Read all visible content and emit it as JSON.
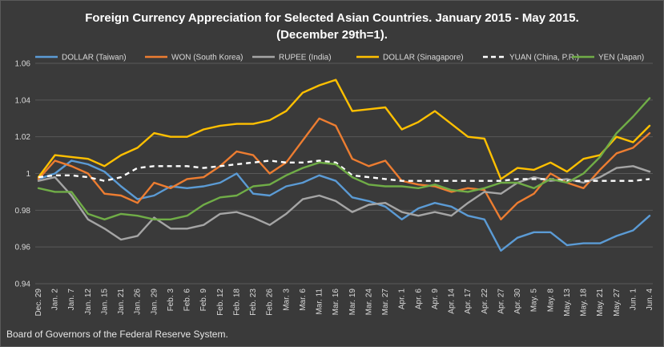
{
  "chart_data": {
    "type": "line",
    "title_line1": "Foreign Currency Appreciation for Selected Asian Countries. January 2015 - May 2015.",
    "title_line2": "(December 29th=1).",
    "source": "Board of Governors of the Federal Reserve System.",
    "ylim": [
      0.94,
      1.06
    ],
    "y_ticks": [
      "0.94",
      "0.96",
      "0.98",
      "1",
      "1.02",
      "1.04",
      "1.06"
    ],
    "grid": true,
    "legend_position": "top",
    "x_tick_labels": [
      "Dec. 29",
      "Jan. 2",
      "Jan. 7",
      "Jan. 12",
      "Jan. 15",
      "Jan. 21",
      "Jan. 26",
      "Jan. 29",
      "Feb. 3",
      "Feb. 6",
      "Feb. 9",
      "Feb. 12",
      "Feb. 18",
      "Feb. 23",
      "Feb. 26",
      "Mar. 3",
      "Mar. 6",
      "Mar. 11",
      "Mar. 16",
      "Mar. 19",
      "Mar. 24",
      "Mar. 27",
      "Apr. 1",
      "Apr. 6",
      "Apr. 9",
      "Apr. 14",
      "Apr. 17",
      "Apr. 22",
      "Apr. 27",
      "Apr. 30",
      "May. 5",
      "May. 8",
      "May. 13",
      "May. 18",
      "May. 21",
      "May. 27",
      "Jun. 1",
      "Jun. 4"
    ],
    "series": [
      {
        "name": "DOLLAR (Taiwan)",
        "color": "#5b9bd5",
        "style": "solid",
        "values": [
          0.997,
          1.0,
          1.007,
          1.005,
          1.001,
          0.993,
          0.986,
          0.988,
          0.993,
          0.992,
          0.993,
          0.995,
          1.0,
          0.989,
          0.988,
          0.993,
          0.995,
          0.999,
          0.996,
          0.987,
          0.985,
          0.982,
          0.975,
          0.981,
          0.984,
          0.982,
          0.977,
          0.975,
          0.958,
          0.965,
          0.968,
          0.968,
          0.961,
          0.962,
          0.962,
          0.966,
          0.969,
          0.977
        ]
      },
      {
        "name": "WON (South Korea)",
        "color": "#ed7d31",
        "style": "solid",
        "values": [
          0.997,
          1.007,
          1.004,
          1.0,
          0.989,
          0.988,
          0.984,
          0.995,
          0.992,
          0.997,
          0.998,
          1.004,
          1.012,
          1.01,
          1.0,
          1.006,
          1.018,
          1.03,
          1.026,
          1.008,
          1.004,
          1.007,
          0.996,
          0.994,
          0.993,
          0.99,
          0.992,
          0.991,
          0.975,
          0.984,
          0.989,
          1.0,
          0.995,
          0.992,
          1.002,
          1.011,
          1.014,
          1.022
        ]
      },
      {
        "name": "RUPEE (India)",
        "color": "#a5a5a5",
        "style": "solid",
        "values": [
          0.996,
          0.998,
          0.988,
          0.975,
          0.97,
          0.964,
          0.966,
          0.976,
          0.97,
          0.97,
          0.972,
          0.978,
          0.979,
          0.976,
          0.972,
          0.978,
          0.986,
          0.988,
          0.985,
          0.979,
          0.983,
          0.984,
          0.979,
          0.977,
          0.979,
          0.977,
          0.984,
          0.99,
          0.989,
          0.995,
          0.998,
          0.996,
          0.997,
          0.995,
          0.998,
          1.003,
          1.004,
          1.001
        ]
      },
      {
        "name": "DOLLAR (Sinagapore)",
        "color": "#ffc000",
        "style": "solid",
        "values": [
          0.998,
          1.01,
          1.009,
          1.008,
          1.004,
          1.01,
          1.014,
          1.022,
          1.02,
          1.02,
          1.024,
          1.026,
          1.027,
          1.027,
          1.029,
          1.034,
          1.044,
          1.048,
          1.051,
          1.034,
          1.035,
          1.036,
          1.024,
          1.028,
          1.034,
          1.027,
          1.02,
          1.019,
          0.997,
          1.003,
          1.002,
          1.006,
          1.001,
          1.008,
          1.01,
          1.02,
          1.017,
          1.026
        ]
      },
      {
        "name": "YUAN (China, P.R.)",
        "color": "#ffffff",
        "style": "dashed",
        "values": [
          0.998,
          0.999,
          0.999,
          0.998,
          0.996,
          0.998,
          1.003,
          1.004,
          1.004,
          1.004,
          1.003,
          1.004,
          1.005,
          1.006,
          1.007,
          1.006,
          1.006,
          1.007,
          1.006,
          0.999,
          0.998,
          0.997,
          0.996,
          0.996,
          0.996,
          0.996,
          0.996,
          0.996,
          0.996,
          0.997,
          0.997,
          0.997,
          0.996,
          0.996,
          0.996,
          0.996,
          0.996,
          0.997
        ]
      },
      {
        "name": "YEN (Japan)",
        "color": "#70ad47",
        "style": "solid",
        "values": [
          0.992,
          0.99,
          0.99,
          0.978,
          0.975,
          0.978,
          0.977,
          0.975,
          0.975,
          0.977,
          0.983,
          0.987,
          0.988,
          0.993,
          0.994,
          0.999,
          1.003,
          1.006,
          1.005,
          0.998,
          0.994,
          0.993,
          0.993,
          0.992,
          0.994,
          0.991,
          0.99,
          0.992,
          0.995,
          0.995,
          0.992,
          0.997,
          0.995,
          1.0,
          1.009,
          1.022,
          1.031,
          1.041
        ]
      }
    ]
  }
}
